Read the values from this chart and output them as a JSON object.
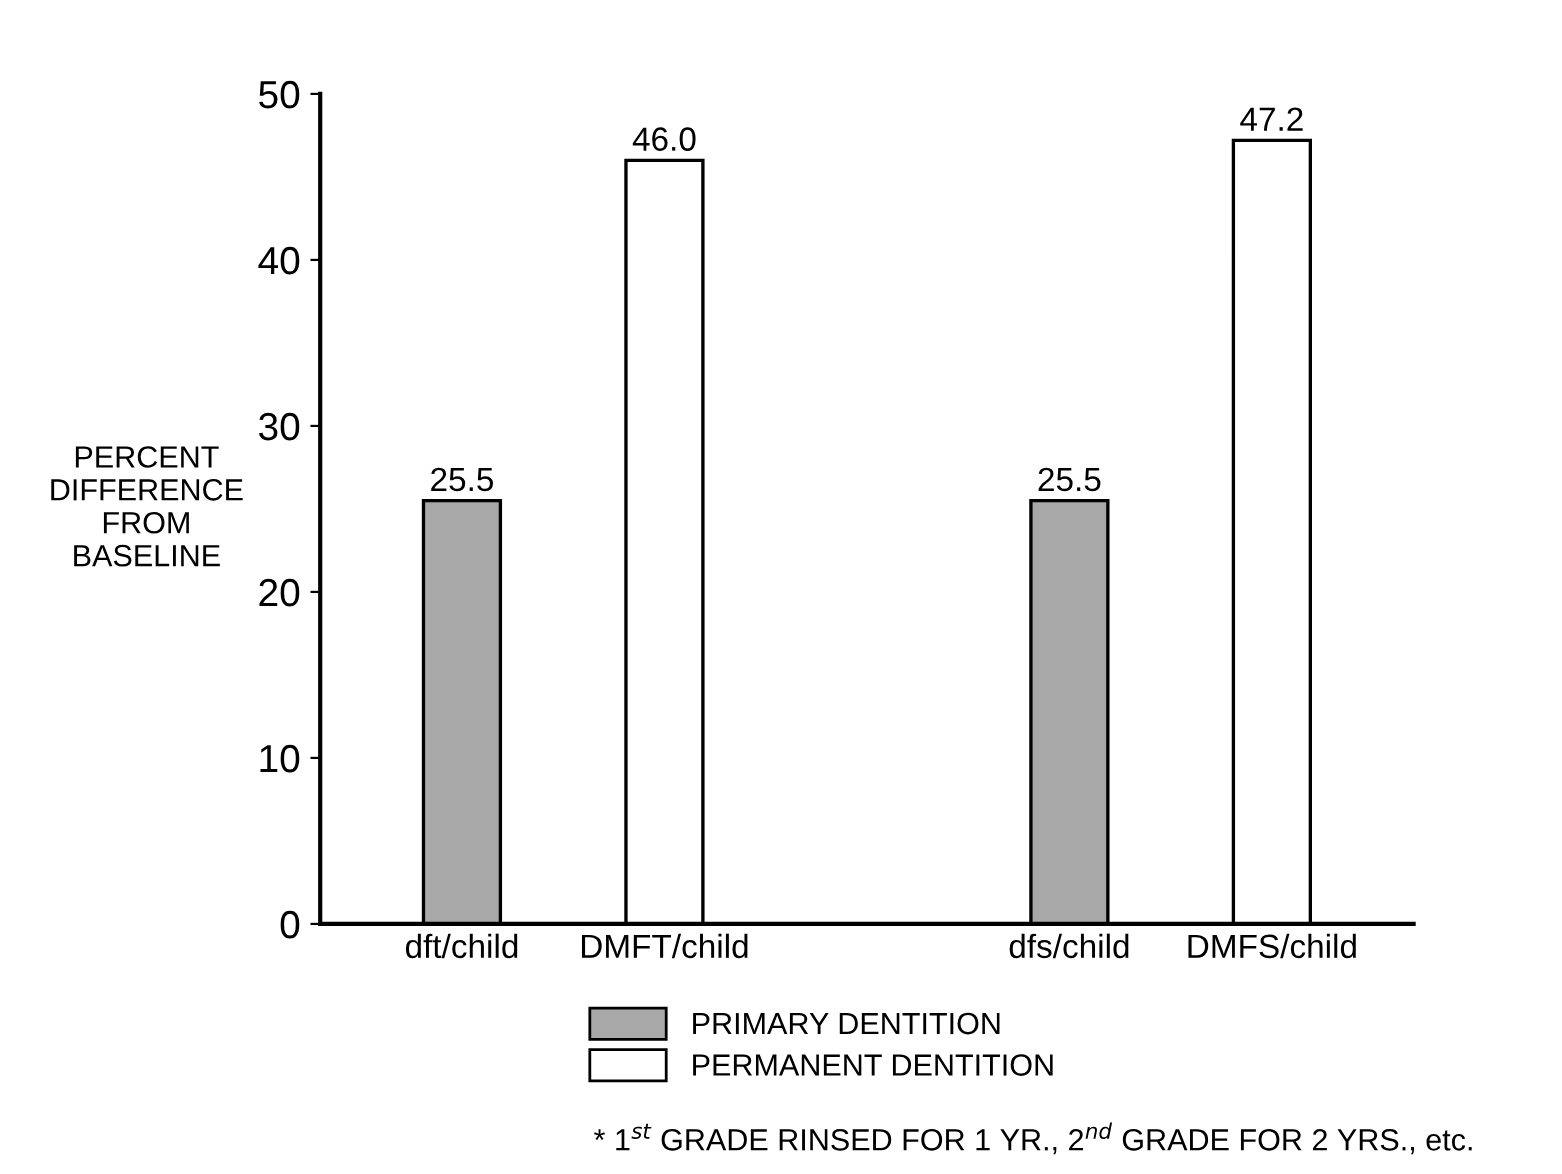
{
  "chart_data": {
    "type": "bar",
    "categories": [
      "dft/child",
      "DMFT/child",
      null,
      "dfs/child",
      "DMFS/child"
    ],
    "series": [
      {
        "name": "PRIMARY DENTITION",
        "color": "#a8a8a8",
        "values": [
          25.5,
          null,
          null,
          25.5,
          null
        ],
        "value_labels": [
          "25.5",
          null,
          null,
          "25.5",
          null
        ]
      },
      {
        "name": "PERMANENT DENTITION",
        "color": "#ffffff",
        "values": [
          null,
          46.0,
          null,
          null,
          47.2
        ],
        "value_labels": [
          null,
          "46.0",
          null,
          null,
          "47.2"
        ]
      }
    ],
    "ylabel": "PERCENT\nDIFFERENCE\nFROM\nBASELINE",
    "ylim": [
      0,
      50
    ],
    "yticks": [
      0,
      10,
      20,
      30,
      40,
      50
    ],
    "grid": false,
    "legend": "bottom",
    "annotations": [
      "* 1$^{st}$ GRADE RINSED FOR 1 YR., 2$^{nd}$ GRADE FOR 2 YRS., etc."
    ]
  }
}
